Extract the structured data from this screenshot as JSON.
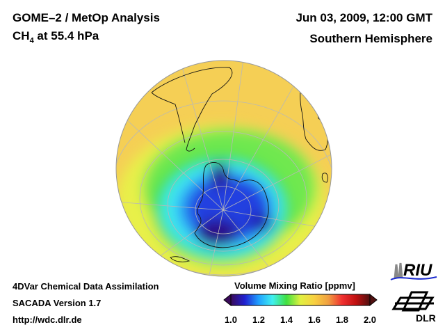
{
  "header": {
    "title_line1": "GOME–2 / MetOp Analysis",
    "species": "CH",
    "species_sub": "4",
    "level": " at 55.4 hPa",
    "datetime": "Jun 03, 2009, 12:00 GMT",
    "region": "Southern Hemisphere"
  },
  "footer": {
    "line1": "4DVar Chemical Data Assimilation",
    "line2": "SACADA Version 1.7",
    "line3": "http://wdc.dlr.de"
  },
  "colorbar": {
    "label": "Volume Mixing Ratio [ppmv]",
    "ticks": [
      "1.0",
      "1.2",
      "1.4",
      "1.6",
      "1.8",
      "2.0"
    ],
    "range": [
      1.0,
      2.0
    ],
    "colors": [
      "#3a0a5a",
      "#2020d0",
      "#20a0ff",
      "#40f0f0",
      "#40e040",
      "#e0f040",
      "#f8d040",
      "#f0a040",
      "#f03030",
      "#c01010",
      "#501010"
    ]
  },
  "logos": {
    "riu": "RIU",
    "dlr": "DLR"
  }
}
